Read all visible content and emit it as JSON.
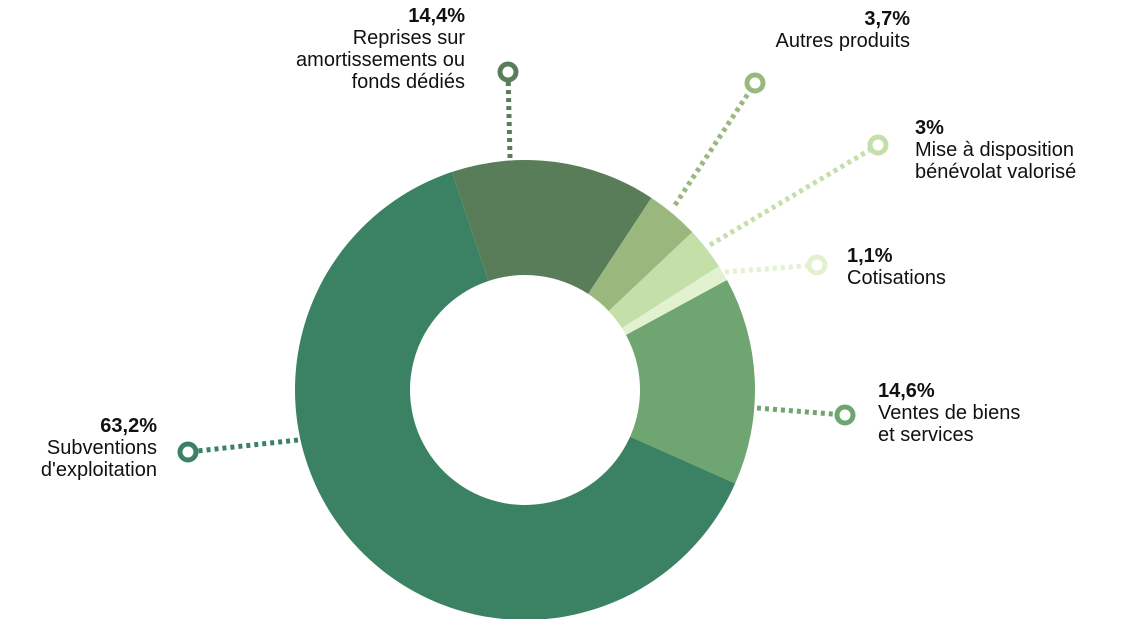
{
  "chart_data": {
    "type": "donut",
    "categories": [
      "Reprises sur\namortissements ou\nfonds dédiés",
      "Autres produits",
      "Mise à disposition\nbénévolat valorisé",
      "Cotisations",
      "Ventes de biens\net services",
      "Subventions\nd'exploitation"
    ],
    "values": [
      14.4,
      3.7,
      3,
      1.1,
      14.6,
      63.2
    ],
    "value_labels": [
      "14,4%",
      "3,7%",
      "3%",
      "1,1%",
      "14,6%",
      "63,2%"
    ],
    "colors": [
      "#5a7d59",
      "#9ab87e",
      "#c4dfa8",
      "#e2f2d0",
      "#6fa570",
      "#3b8264"
    ]
  }
}
